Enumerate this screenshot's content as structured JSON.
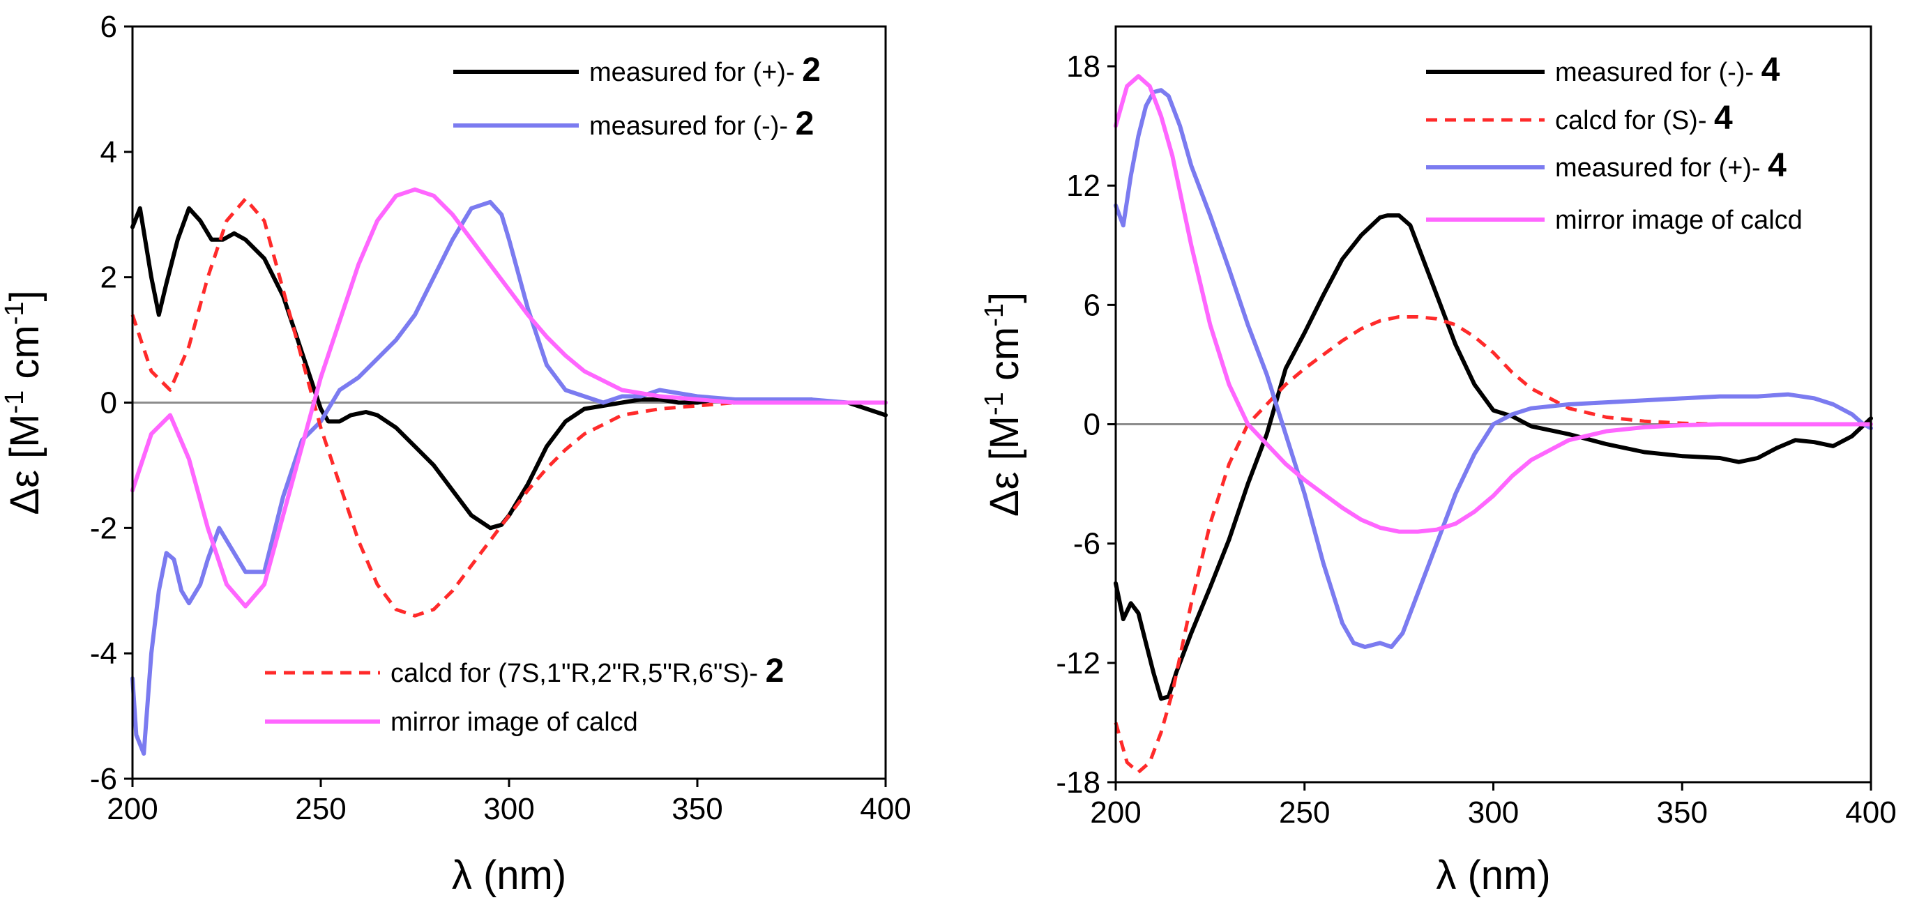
{
  "chart_data": [
    {
      "type": "line",
      "xlabel": "λ (nm)",
      "ylabel": "Δε [M⁻¹ cm⁻¹]",
      "xlim": [
        200,
        400
      ],
      "ylim": [
        -6,
        6
      ],
      "xticks": [
        200,
        250,
        300,
        350,
        400
      ],
      "yticks": [
        -6,
        -4,
        -2,
        0,
        2,
        4,
        6
      ],
      "zero_line": true,
      "legends": [
        {
          "placement": "top-right",
          "entries": [
            {
              "series": "measured_plus_2",
              "text": "measured for (+)- ",
              "bold": "2"
            },
            {
              "series": "measured_minus_2",
              "text": "measured for (-)- ",
              "bold": "2"
            }
          ]
        },
        {
          "placement": "bottom-right",
          "entries": [
            {
              "series": "calcd_2",
              "text": "calcd for (7S,1\"R,2\"R,5\"R,6\"S)- ",
              "bold": "2"
            },
            {
              "series": "mirror_2",
              "text": "mirror image of calcd",
              "bold": ""
            }
          ]
        }
      ],
      "series": [
        {
          "id": "measured_plus_2",
          "name": "measured for (+)- 2",
          "color": "#000000",
          "dash": "solid",
          "x": [
            200,
            202,
            205,
            207,
            209,
            212,
            215,
            218,
            221,
            224,
            227,
            230,
            235,
            240,
            245,
            250,
            252,
            255,
            258,
            262,
            265,
            270,
            275,
            280,
            285,
            290,
            295,
            298,
            300,
            305,
            310,
            315,
            320,
            325,
            330,
            335,
            340,
            345,
            350,
            355,
            360,
            365,
            370,
            375,
            380,
            385,
            390,
            395,
            400
          ],
          "y": [
            2.8,
            3.1,
            2.0,
            1.4,
            1.9,
            2.6,
            3.1,
            2.9,
            2.6,
            2.6,
            2.7,
            2.6,
            2.3,
            1.7,
            0.8,
            -0.1,
            -0.3,
            -0.3,
            -0.2,
            -0.15,
            -0.2,
            -0.4,
            -0.7,
            -1.0,
            -1.4,
            -1.8,
            -2.0,
            -1.95,
            -1.8,
            -1.3,
            -0.7,
            -0.3,
            -0.1,
            -0.05,
            0.0,
            0.05,
            0.05,
            0.0,
            0.0,
            0.05,
            0.0,
            0.05,
            0.0,
            0.0,
            0.05,
            0.0,
            0.0,
            -0.1,
            -0.2
          ]
        },
        {
          "id": "measured_minus_2",
          "name": "measured for (-)- 2",
          "color": "#7b7bf0",
          "dash": "solid",
          "x": [
            200,
            201,
            203,
            205,
            207,
            209,
            211,
            213,
            215,
            218,
            220,
            223,
            226,
            230,
            235,
            240,
            245,
            250,
            255,
            260,
            265,
            270,
            275,
            280,
            285,
            290,
            295,
            298,
            300,
            305,
            310,
            315,
            320,
            325,
            330,
            335,
            340,
            345,
            350,
            360,
            370,
            380,
            390,
            400
          ],
          "y": [
            -4.4,
            -5.3,
            -5.6,
            -4.0,
            -3.0,
            -2.4,
            -2.5,
            -3.0,
            -3.2,
            -2.9,
            -2.5,
            -2.0,
            -2.3,
            -2.7,
            -2.7,
            -1.5,
            -0.6,
            -0.3,
            0.2,
            0.4,
            0.7,
            1.0,
            1.4,
            2.0,
            2.6,
            3.1,
            3.2,
            3.0,
            2.6,
            1.5,
            0.6,
            0.2,
            0.1,
            0.0,
            0.1,
            0.1,
            0.2,
            0.15,
            0.1,
            0.05,
            0.05,
            0.05,
            0.0,
            0.0
          ]
        },
        {
          "id": "calcd_2",
          "name": "calcd for (7S,1\"R,2\"R,5\"R,6\"S)- 2",
          "color": "#ff2a2a",
          "dash": "dashed",
          "x": [
            200,
            205,
            210,
            215,
            220,
            225,
            230,
            235,
            240,
            245,
            250,
            255,
            260,
            265,
            270,
            275,
            280,
            285,
            290,
            295,
            300,
            305,
            310,
            315,
            320,
            330,
            340,
            350,
            360,
            370,
            380,
            390,
            400
          ],
          "y": [
            1.4,
            0.5,
            0.2,
            0.9,
            2.0,
            2.9,
            3.25,
            2.9,
            1.8,
            0.7,
            -0.4,
            -1.3,
            -2.2,
            -2.9,
            -3.3,
            -3.4,
            -3.3,
            -3.0,
            -2.6,
            -2.2,
            -1.8,
            -1.4,
            -1.05,
            -0.75,
            -0.5,
            -0.2,
            -0.1,
            -0.05,
            0.0,
            0.0,
            0.0,
            0.0,
            0.0
          ]
        },
        {
          "id": "mirror_2",
          "name": "mirror image of calcd",
          "color": "#ff66ff",
          "dash": "solid",
          "x": [
            200,
            205,
            210,
            215,
            220,
            225,
            230,
            235,
            240,
            245,
            250,
            255,
            260,
            265,
            270,
            275,
            280,
            285,
            290,
            295,
            300,
            305,
            310,
            315,
            320,
            330,
            340,
            350,
            360,
            370,
            380,
            390,
            400
          ],
          "y": [
            -1.4,
            -0.5,
            -0.2,
            -0.9,
            -2.0,
            -2.9,
            -3.25,
            -2.9,
            -1.8,
            -0.7,
            0.4,
            1.3,
            2.2,
            2.9,
            3.3,
            3.4,
            3.3,
            3.0,
            2.6,
            2.2,
            1.8,
            1.4,
            1.05,
            0.75,
            0.5,
            0.2,
            0.1,
            0.05,
            0.0,
            0.0,
            0.0,
            0.0,
            0.0
          ]
        }
      ]
    },
    {
      "type": "line",
      "xlabel": "λ (nm)",
      "ylabel": "Δε [M⁻¹ cm⁻¹]",
      "xlim": [
        200,
        400
      ],
      "ylim": [
        -18,
        20
      ],
      "xticks": [
        200,
        250,
        300,
        350,
        400
      ],
      "yticks": [
        -18,
        -12,
        -6,
        0,
        6,
        12,
        18
      ],
      "zero_line": true,
      "legends": [
        {
          "placement": "top-right",
          "entries": [
            {
              "series": "measured_minus_4",
              "text": "measured for (-)- ",
              "bold": "4"
            },
            {
              "series": "calcd_4",
              "text": "calcd for (S)- ",
              "bold": "4"
            },
            {
              "series": "measured_plus_4",
              "text": "measured for (+)- ",
              "bold": "4"
            },
            {
              "series": "mirror_4",
              "text": "mirror image of calcd",
              "bold": ""
            }
          ]
        }
      ],
      "series": [
        {
          "id": "measured_minus_4",
          "name": "measured for (-)- 4",
          "color": "#000000",
          "dash": "solid",
          "x": [
            200,
            202,
            204,
            206,
            208,
            210,
            212,
            214,
            216,
            220,
            225,
            230,
            235,
            240,
            245,
            250,
            255,
            260,
            265,
            270,
            272,
            275,
            278,
            280,
            285,
            290,
            295,
            300,
            305,
            310,
            315,
            320,
            330,
            340,
            350,
            360,
            365,
            370,
            375,
            380,
            385,
            390,
            395,
            400
          ],
          "y": [
            -8.0,
            -9.8,
            -9.0,
            -9.5,
            -11.0,
            -12.5,
            -13.8,
            -13.7,
            -12.5,
            -10.5,
            -8.2,
            -5.8,
            -3.0,
            -0.5,
            2.8,
            4.6,
            6.5,
            8.3,
            9.5,
            10.4,
            10.5,
            10.5,
            10.0,
            9.0,
            6.5,
            4.0,
            2.0,
            0.7,
            0.4,
            -0.1,
            -0.3,
            -0.5,
            -1.0,
            -1.4,
            -1.6,
            -1.7,
            -1.9,
            -1.7,
            -1.2,
            -0.8,
            -0.9,
            -1.1,
            -0.6,
            0.3
          ]
        },
        {
          "id": "calcd_4",
          "name": "calcd for (S)- 4",
          "color": "#ff2a2a",
          "dash": "dashed",
          "x": [
            200,
            203,
            206,
            209,
            212,
            215,
            220,
            225,
            230,
            235,
            240,
            245,
            250,
            255,
            260,
            265,
            270,
            275,
            280,
            285,
            290,
            295,
            300,
            305,
            310,
            320,
            330,
            340,
            350,
            360,
            370,
            380,
            390,
            400
          ],
          "y": [
            -15.0,
            -17.0,
            -17.5,
            -17.0,
            -15.5,
            -13.5,
            -9.0,
            -5.0,
            -2.0,
            0.0,
            1.0,
            2.0,
            2.8,
            3.5,
            4.2,
            4.8,
            5.2,
            5.4,
            5.4,
            5.3,
            5.0,
            4.4,
            3.6,
            2.6,
            1.8,
            0.8,
            0.35,
            0.15,
            0.05,
            0.0,
            0.0,
            0.0,
            0.0,
            0.0
          ]
        },
        {
          "id": "measured_plus_4",
          "name": "measured for (+)- 4",
          "color": "#7b7bf0",
          "dash": "solid",
          "x": [
            200,
            201,
            202,
            204,
            206,
            208,
            210,
            212,
            214,
            217,
            220,
            225,
            230,
            235,
            240,
            245,
            250,
            255,
            260,
            263,
            266,
            270,
            273,
            276,
            280,
            285,
            290,
            295,
            300,
            305,
            310,
            320,
            330,
            340,
            350,
            360,
            370,
            378,
            385,
            390,
            395,
            398,
            400
          ],
          "y": [
            11.0,
            10.5,
            10.0,
            12.5,
            14.5,
            16.0,
            16.7,
            16.8,
            16.5,
            15.0,
            13.0,
            10.5,
            7.8,
            5.0,
            2.5,
            -0.5,
            -3.5,
            -7.0,
            -10.0,
            -11.0,
            -11.2,
            -11.0,
            -11.2,
            -10.5,
            -8.5,
            -6.0,
            -3.5,
            -1.5,
            0.0,
            0.5,
            0.8,
            1.0,
            1.1,
            1.2,
            1.3,
            1.4,
            1.4,
            1.5,
            1.3,
            1.0,
            0.5,
            0.0,
            -0.2
          ]
        },
        {
          "id": "mirror_4",
          "name": "mirror image of calcd",
          "color": "#ff66ff",
          "dash": "solid",
          "x": [
            200,
            203,
            206,
            209,
            212,
            215,
            220,
            225,
            230,
            235,
            240,
            245,
            250,
            255,
            260,
            265,
            270,
            275,
            280,
            285,
            290,
            295,
            300,
            305,
            310,
            320,
            330,
            340,
            350,
            360,
            370,
            380,
            390,
            400
          ],
          "y": [
            15.0,
            17.0,
            17.5,
            17.0,
            15.5,
            13.5,
            9.0,
            5.0,
            2.0,
            0.0,
            -1.0,
            -2.0,
            -2.8,
            -3.5,
            -4.2,
            -4.8,
            -5.2,
            -5.4,
            -5.4,
            -5.3,
            -5.0,
            -4.4,
            -3.6,
            -2.6,
            -1.8,
            -0.8,
            -0.35,
            -0.15,
            -0.05,
            0.0,
            0.0,
            0.0,
            0.0,
            0.0
          ]
        }
      ]
    }
  ]
}
